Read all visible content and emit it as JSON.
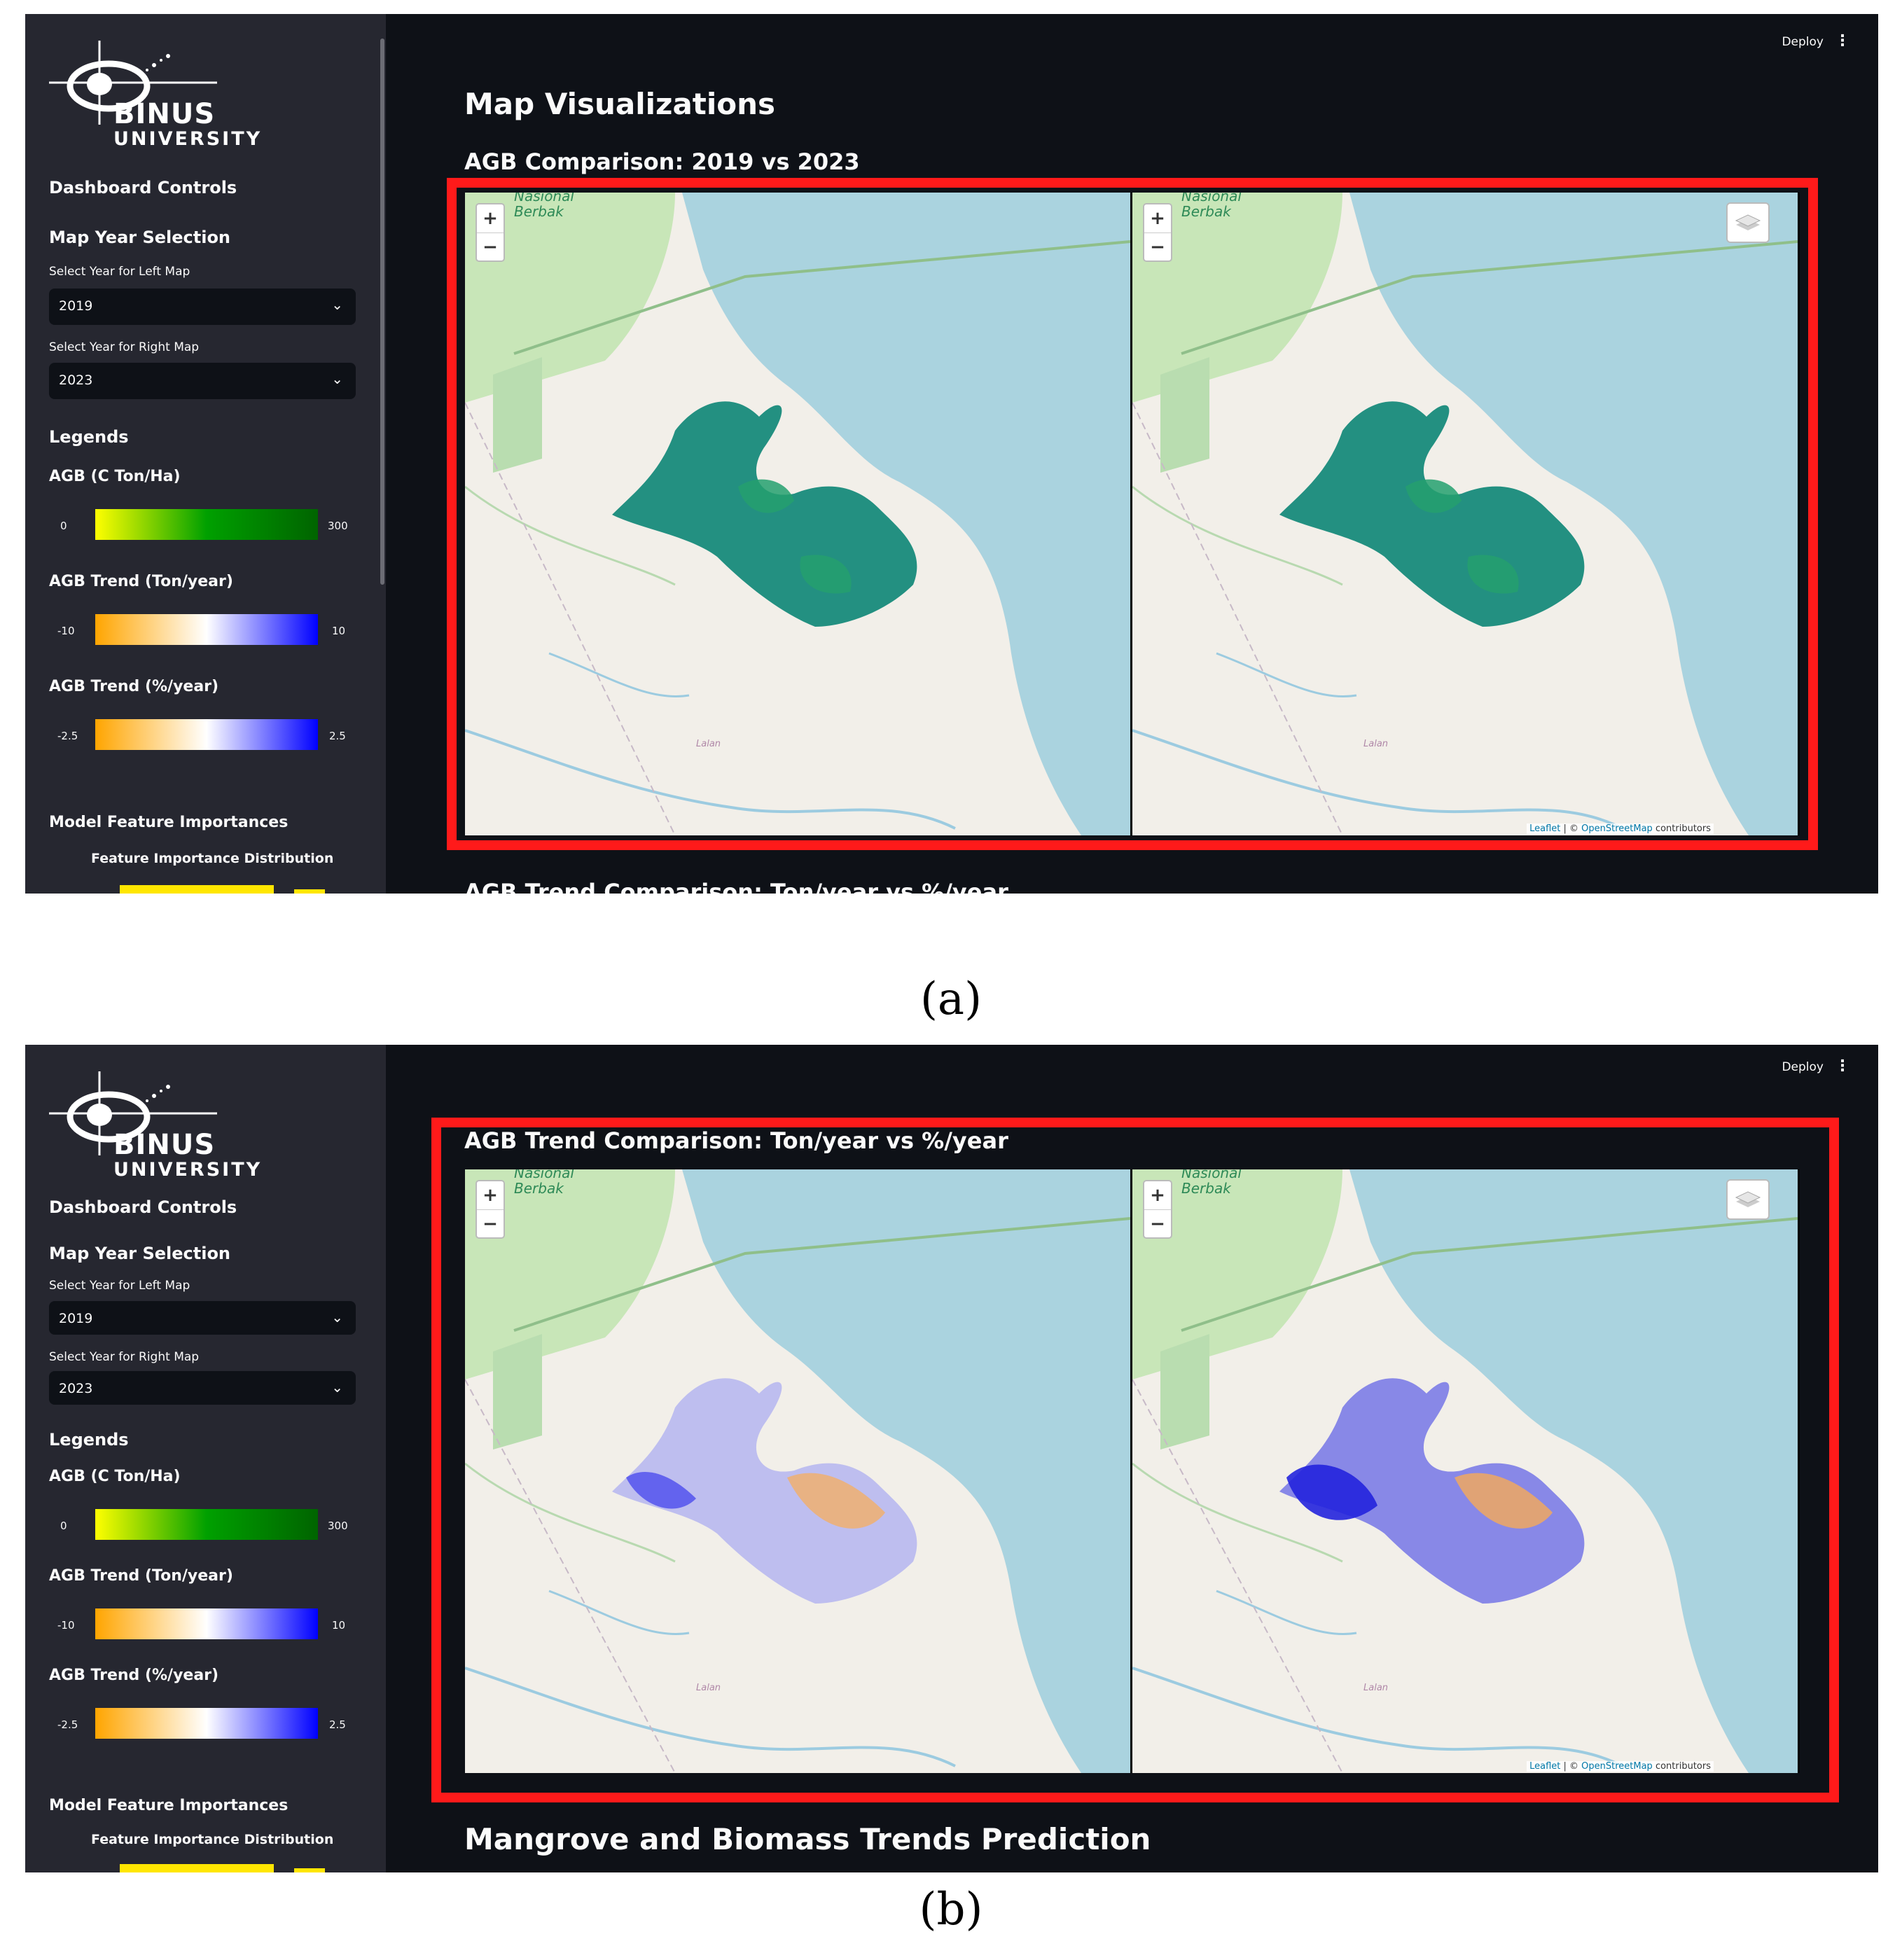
{
  "sidebar": {
    "logo_line1": "BINUS",
    "logo_line2": "UNIVERSITY",
    "dashboard_controls": "Dashboard Controls",
    "map_year_selection": "Map Year Selection",
    "left_label": "Select Year for Left Map",
    "left_value": "2019",
    "right_label": "Select Year for Right Map",
    "right_value": "2023",
    "legends_title": "Legends",
    "legend_agb": {
      "title": "AGB (C Ton/Ha)",
      "min": "0",
      "max": "300",
      "colors": [
        "#ffff00",
        "#00a000",
        "#006400"
      ]
    },
    "legend_trend_ton": {
      "title": "AGB Trend (Ton/year)",
      "min": "-10",
      "max": "10",
      "colors": [
        "#ffa500",
        "#ffffff",
        "#0000ff"
      ]
    },
    "legend_trend_pct": {
      "title": "AGB Trend (%/year)",
      "min": "-2.5",
      "max": "2.5",
      "colors": [
        "#ffa500",
        "#ffffff",
        "#0000ff"
      ]
    },
    "model_feature": "Model Feature Importances",
    "feature_dist": "Feature Importance Distribution"
  },
  "toolbar": {
    "deploy": "Deploy",
    "menu_icon": "kebab-menu-icon"
  },
  "panel_a": {
    "heading": "Map Visualizations",
    "subheading": "AGB Comparison: 2019 vs 2023",
    "next_heading_partial": "AGB Trend Comparison: Ton/year vs %/year",
    "caption": "(a)"
  },
  "panel_b": {
    "subheading": "AGB Trend Comparison: Ton/year vs %/year",
    "next_heading": "Mangrove and Biomass Trends Prediction",
    "caption": "(b)"
  },
  "map": {
    "place_line1": "Nasional",
    "place_line2": "Berbak",
    "town": "Lalan",
    "attr_leaflet": "Leaflet",
    "attr_sep": " | © ",
    "attr_osm": "OpenStreetMap",
    "attr_contrib": " contributors",
    "zoom_in": "+",
    "zoom_out": "−"
  },
  "colors": {
    "highlight": "#ff1a1a",
    "sea": "#aad3df",
    "land": "#f2efe9",
    "park": "#c8e6b8",
    "mangrove": "#118877",
    "trend_pos": "#4444ee",
    "trend_neg": "#f0b070"
  }
}
